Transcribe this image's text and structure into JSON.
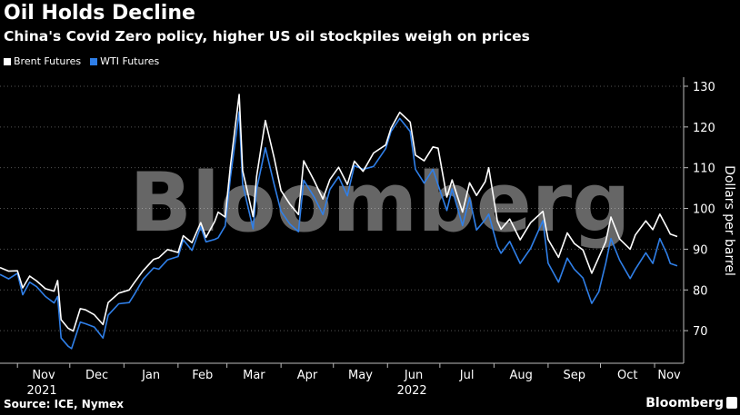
{
  "header": {
    "title": "Oil Holds Decline",
    "subtitle": "China's Covid Zero policy, higher US oil stockpiles weigh on prices"
  },
  "footer": {
    "source": "Source: ICE, Nymex",
    "brand": "Bloomberg",
    "watermark": "Bloomberg"
  },
  "colors": {
    "background": "#000000",
    "brent": "#ffffff",
    "wti": "#2f7fe8",
    "grid": "#444444"
  },
  "chart_data": {
    "type": "line",
    "title": "Oil Holds Decline",
    "subtitle": "China's Covid Zero policy, higher US oil stockpiles weigh on prices",
    "ylabel": "Dollars per barrel",
    "ylim": [
      62,
      132
    ],
    "yticks": [
      70,
      80,
      90,
      100,
      110,
      120,
      130
    ],
    "y_axis_position": "right",
    "grid": "horizontal dotted",
    "legend_position": "top-left",
    "x_tick_labels": [
      "Nov",
      "Dec",
      "Jan",
      "Feb",
      "Mar",
      "Apr",
      "May",
      "Jun",
      "Jul",
      "Aug",
      "Sep",
      "Oct",
      "Nov"
    ],
    "x_tick_dates": [
      "2021-11-01",
      "2021-12-01",
      "2022-01-01",
      "2022-02-01",
      "2022-03-01",
      "2022-04-01",
      "2022-05-01",
      "2022-06-01",
      "2022-07-01",
      "2022-08-01",
      "2022-09-01",
      "2022-10-01",
      "2022-11-01"
    ],
    "year_labels": [
      {
        "label": "2021",
        "date": "2021-11-15"
      },
      {
        "label": "2022",
        "date": "2022-06-15"
      }
    ],
    "series": [
      {
        "name": "Brent Futures",
        "color": "#ffffff",
        "points": [
          [
            "2021-10-22",
            85.5
          ],
          [
            "2021-10-27",
            84.6
          ],
          [
            "2021-11-01",
            84.7
          ],
          [
            "2021-11-04",
            80.5
          ],
          [
            "2021-11-08",
            83.4
          ],
          [
            "2021-11-12",
            82.2
          ],
          [
            "2021-11-17",
            80.3
          ],
          [
            "2021-11-22",
            79.7
          ],
          [
            "2021-11-24",
            82.3
          ],
          [
            "2021-11-26",
            72.7
          ],
          [
            "2021-11-30",
            70.6
          ],
          [
            "2021-12-03",
            69.9
          ],
          [
            "2021-12-07",
            75.4
          ],
          [
            "2021-12-10",
            75.1
          ],
          [
            "2021-12-15",
            73.9
          ],
          [
            "2021-12-20",
            71.5
          ],
          [
            "2021-12-23",
            76.9
          ],
          [
            "2021-12-29",
            79.2
          ],
          [
            "2022-01-04",
            80.0
          ],
          [
            "2022-01-07",
            81.8
          ],
          [
            "2022-01-12",
            84.7
          ],
          [
            "2022-01-18",
            87.5
          ],
          [
            "2022-01-21",
            87.9
          ],
          [
            "2022-01-26",
            89.9
          ],
          [
            "2022-02-01",
            89.2
          ],
          [
            "2022-02-04",
            93.3
          ],
          [
            "2022-02-09",
            91.6
          ],
          [
            "2022-02-14",
            96.5
          ],
          [
            "2022-02-17",
            92.9
          ],
          [
            "2022-02-22",
            96.8
          ],
          [
            "2022-02-24",
            99.1
          ],
          [
            "2022-02-28",
            97.9
          ],
          [
            "2022-03-03",
            110.5
          ],
          [
            "2022-03-08",
            127.98
          ],
          [
            "2022-03-10",
            109.3
          ],
          [
            "2022-03-16",
            98.0
          ],
          [
            "2022-03-18",
            107.9
          ],
          [
            "2022-03-23",
            121.6
          ],
          [
            "2022-03-28",
            112.5
          ],
          [
            "2022-04-01",
            104.4
          ],
          [
            "2022-04-06",
            101.1
          ],
          [
            "2022-04-11",
            98.5
          ],
          [
            "2022-04-14",
            111.7
          ],
          [
            "2022-04-20",
            106.8
          ],
          [
            "2022-04-25",
            102.3
          ],
          [
            "2022-04-29",
            107.1
          ],
          [
            "2022-05-04",
            110.1
          ],
          [
            "2022-05-09",
            105.9
          ],
          [
            "2022-05-13",
            111.6
          ],
          [
            "2022-05-18",
            109.1
          ],
          [
            "2022-05-24",
            113.6
          ],
          [
            "2022-05-31",
            115.6
          ],
          [
            "2022-06-03",
            119.7
          ],
          [
            "2022-06-08",
            123.6
          ],
          [
            "2022-06-14",
            121.2
          ],
          [
            "2022-06-17",
            113.1
          ],
          [
            "2022-06-22",
            111.7
          ],
          [
            "2022-06-27",
            115.1
          ],
          [
            "2022-06-30",
            114.8
          ],
          [
            "2022-07-05",
            102.8
          ],
          [
            "2022-07-08",
            107.0
          ],
          [
            "2022-07-14",
            99.1
          ],
          [
            "2022-07-18",
            106.3
          ],
          [
            "2022-07-22",
            103.2
          ],
          [
            "2022-07-27",
            106.6
          ],
          [
            "2022-07-29",
            110.0
          ],
          [
            "2022-08-03",
            96.8
          ],
          [
            "2022-08-05",
            94.9
          ],
          [
            "2022-08-10",
            97.4
          ],
          [
            "2022-08-16",
            92.3
          ],
          [
            "2022-08-22",
            96.5
          ],
          [
            "2022-08-29",
            99.3
          ],
          [
            "2022-09-01",
            92.4
          ],
          [
            "2022-09-07",
            88.0
          ],
          [
            "2022-09-12",
            94.0
          ],
          [
            "2022-09-16",
            91.4
          ],
          [
            "2022-09-21",
            89.8
          ],
          [
            "2022-09-26",
            84.1
          ],
          [
            "2022-09-30",
            87.96
          ],
          [
            "2022-10-04",
            91.8
          ],
          [
            "2022-10-07",
            97.9
          ],
          [
            "2022-10-12",
            92.5
          ],
          [
            "2022-10-18",
            90.0
          ],
          [
            "2022-10-21",
            93.5
          ],
          [
            "2022-10-27",
            96.96
          ],
          [
            "2022-10-31",
            94.8
          ],
          [
            "2022-11-04",
            98.6
          ],
          [
            "2022-11-08",
            95.4
          ],
          [
            "2022-11-10",
            93.7
          ],
          [
            "2022-11-14",
            93.1
          ]
        ]
      },
      {
        "name": "WTI Futures",
        "color": "#2f7fe8",
        "points": [
          [
            "2021-10-22",
            83.8
          ],
          [
            "2021-10-27",
            82.7
          ],
          [
            "2021-11-01",
            84.1
          ],
          [
            "2021-11-04",
            78.8
          ],
          [
            "2021-11-08",
            81.9
          ],
          [
            "2021-11-12",
            80.8
          ],
          [
            "2021-11-17",
            78.4
          ],
          [
            "2021-11-22",
            76.8
          ],
          [
            "2021-11-24",
            78.4
          ],
          [
            "2021-11-26",
            68.2
          ],
          [
            "2021-11-30",
            66.2
          ],
          [
            "2021-12-02",
            65.6
          ],
          [
            "2021-12-07",
            72.1
          ],
          [
            "2021-12-10",
            71.7
          ],
          [
            "2021-12-15",
            70.9
          ],
          [
            "2021-12-20",
            68.2
          ],
          [
            "2021-12-23",
            73.8
          ],
          [
            "2021-12-29",
            76.6
          ],
          [
            "2022-01-04",
            76.9
          ],
          [
            "2022-01-07",
            78.9
          ],
          [
            "2022-01-12",
            82.6
          ],
          [
            "2022-01-18",
            85.4
          ],
          [
            "2022-01-21",
            85.1
          ],
          [
            "2022-01-26",
            87.4
          ],
          [
            "2022-02-01",
            88.2
          ],
          [
            "2022-02-04",
            92.3
          ],
          [
            "2022-02-09",
            89.7
          ],
          [
            "2022-02-14",
            95.5
          ],
          [
            "2022-02-17",
            91.8
          ],
          [
            "2022-02-22",
            92.4
          ],
          [
            "2022-02-24",
            92.8
          ],
          [
            "2022-02-28",
            95.7
          ],
          [
            "2022-03-03",
            107.7
          ],
          [
            "2022-03-08",
            123.7
          ],
          [
            "2022-03-10",
            106.0
          ],
          [
            "2022-03-16",
            95.0
          ],
          [
            "2022-03-18",
            104.7
          ],
          [
            "2022-03-23",
            114.9
          ],
          [
            "2022-03-28",
            105.96
          ],
          [
            "2022-04-01",
            99.3
          ],
          [
            "2022-04-06",
            96.2
          ],
          [
            "2022-04-11",
            94.3
          ],
          [
            "2022-04-14",
            106.95
          ],
          [
            "2022-04-20",
            102.8
          ],
          [
            "2022-04-25",
            98.5
          ],
          [
            "2022-04-29",
            104.7
          ],
          [
            "2022-05-04",
            107.8
          ],
          [
            "2022-05-09",
            103.1
          ],
          [
            "2022-05-13",
            110.5
          ],
          [
            "2022-05-18",
            109.6
          ],
          [
            "2022-05-24",
            110.3
          ],
          [
            "2022-05-31",
            114.7
          ],
          [
            "2022-06-03",
            118.9
          ],
          [
            "2022-06-08",
            122.1
          ],
          [
            "2022-06-14",
            118.9
          ],
          [
            "2022-06-17",
            109.6
          ],
          [
            "2022-06-22",
            106.2
          ],
          [
            "2022-06-27",
            109.6
          ],
          [
            "2022-06-30",
            105.8
          ],
          [
            "2022-07-05",
            99.5
          ],
          [
            "2022-07-08",
            104.8
          ],
          [
            "2022-07-14",
            95.8
          ],
          [
            "2022-07-18",
            102.6
          ],
          [
            "2022-07-22",
            94.7
          ],
          [
            "2022-07-27",
            97.3
          ],
          [
            "2022-07-29",
            98.6
          ],
          [
            "2022-08-03",
            90.7
          ],
          [
            "2022-08-05",
            89.0
          ],
          [
            "2022-08-10",
            91.9
          ],
          [
            "2022-08-16",
            86.5
          ],
          [
            "2022-08-22",
            90.2
          ],
          [
            "2022-08-29",
            97.0
          ],
          [
            "2022-09-01",
            86.6
          ],
          [
            "2022-09-07",
            81.9
          ],
          [
            "2022-09-12",
            87.8
          ],
          [
            "2022-09-16",
            85.1
          ],
          [
            "2022-09-21",
            82.9
          ],
          [
            "2022-09-26",
            76.7
          ],
          [
            "2022-09-30",
            79.5
          ],
          [
            "2022-10-04",
            86.5
          ],
          [
            "2022-10-07",
            92.6
          ],
          [
            "2022-10-12",
            87.3
          ],
          [
            "2022-10-18",
            82.8
          ],
          [
            "2022-10-21",
            85.1
          ],
          [
            "2022-10-27",
            89.1
          ],
          [
            "2022-10-31",
            86.5
          ],
          [
            "2022-11-04",
            92.6
          ],
          [
            "2022-11-08",
            88.9
          ],
          [
            "2022-11-10",
            86.5
          ],
          [
            "2022-11-14",
            85.9
          ]
        ]
      }
    ]
  }
}
